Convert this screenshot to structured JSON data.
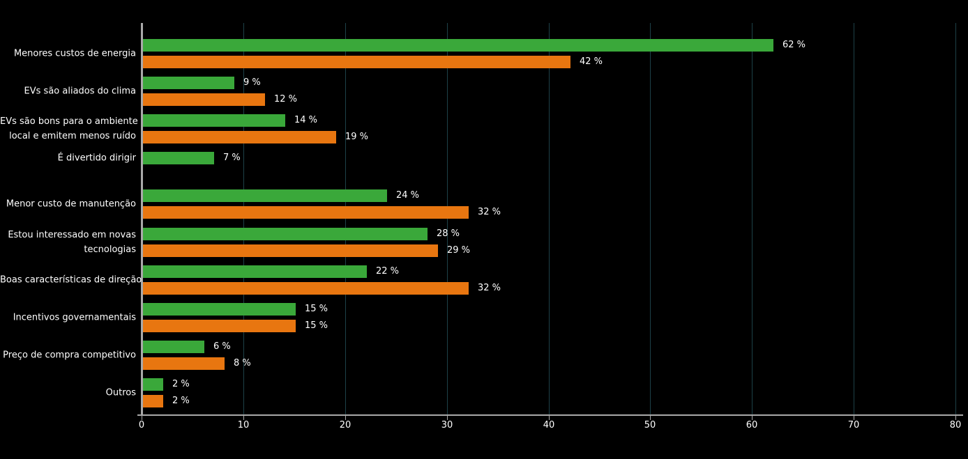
{
  "chart_data": {
    "type": "bar",
    "orientation": "horizontal",
    "title": "",
    "categories": [
      "Menores custos de energia",
      "EVs são aliados do clima",
      "EVs são bons para o ambiente local e emitem menos ruído",
      "É divertido dirigir",
      "Menor custo de manutenção",
      "Estou interessado em novas tecnologias",
      "Boas características de direção",
      "Incentivos governamentais",
      "Preço de compra competitivo",
      "Outros"
    ],
    "category_lines": [
      [
        "Menores custos de energia"
      ],
      [
        "EVs são aliados do clima"
      ],
      [
        "EVs são bons para o ambiente",
        "local e emitem menos ruído"
      ],
      [
        "É divertido dirigir"
      ],
      [
        "Menor custo de manutenção"
      ],
      [
        "Estou interessado em novas",
        "tecnologias"
      ],
      [
        "Boas características de direção"
      ],
      [
        "Incentivos governamentais"
      ],
      [
        "Preço de compra competitivo"
      ],
      [
        "Outros"
      ]
    ],
    "series": [
      {
        "name": "green",
        "color": "#3aa83a",
        "values": [
          62,
          9,
          14,
          7,
          24,
          28,
          22,
          15,
          6,
          2
        ]
      },
      {
        "name": "orange",
        "color": "#e87610",
        "values": [
          42,
          12,
          19,
          null,
          32,
          29,
          32,
          15,
          8,
          2
        ]
      }
    ],
    "value_suffix": " %",
    "xlabel": "",
    "ylabel": "",
    "xlim": [
      0,
      80
    ],
    "x_ticks": [
      0,
      10,
      20,
      30,
      40,
      50,
      60,
      70,
      80
    ],
    "grid": "vertical",
    "legend": "none"
  },
  "colors": {
    "background": "#000000",
    "green_bar": "#3aa83a",
    "orange_bar": "#e87610",
    "gridline": "#1d4148",
    "axis": "#a9a9a9",
    "text": "#ffffff"
  },
  "edge_fragments": [
    {
      "text": "e",
      "y": 178
    },
    {
      "text": "a",
      "y": 352
    },
    {
      "text": "x",
      "y": 443
    }
  ]
}
